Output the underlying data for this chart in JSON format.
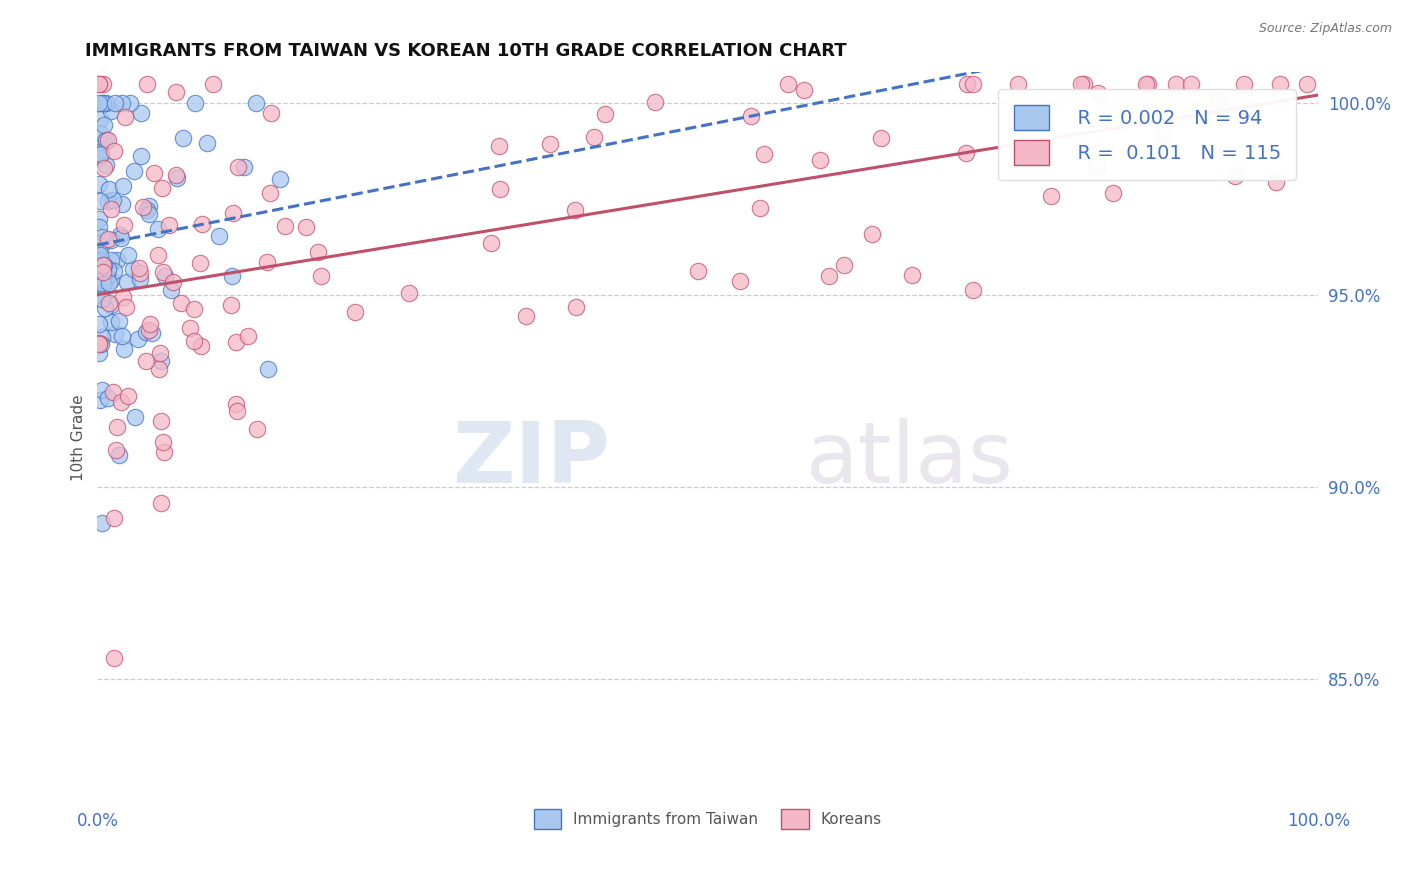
{
  "title": "IMMIGRANTS FROM TAIWAN VS KOREAN 10TH GRADE CORRELATION CHART",
  "source_text": "Source: ZipAtlas.com",
  "ylabel": "10th Grade",
  "x_min": 0.0,
  "x_max": 1.0,
  "y_min": 0.818,
  "y_max": 1.008,
  "y_ticks": [
    0.85,
    0.9,
    0.95,
    1.0
  ],
  "y_tick_labels": [
    "85.0%",
    "90.0%",
    "95.0%",
    "100.0%"
  ],
  "x_ticks": [
    0.0,
    1.0
  ],
  "x_tick_labels": [
    "0.0%",
    "100.0%"
  ],
  "taiwan_color": "#A8C8F0",
  "taiwan_edge_color": "#4472C4",
  "korean_color": "#F4B8C8",
  "korean_edge_color": "#C0506A",
  "taiwan_R": 0.002,
  "taiwan_N": 94,
  "korean_R": 0.101,
  "korean_N": 115,
  "taiwan_trend_color": "#4472C4",
  "korean_trend_color": "#C0506A",
  "grid_color": "#CCCCCC",
  "background_color": "#FFFFFF",
  "axis_label_color": "#4472C4",
  "legend_label1": "Immigrants from Taiwan",
  "legend_label2": "Koreans",
  "watermark_zip": "ZIP",
  "watermark_atlas": "atlas",
  "seed": 42
}
